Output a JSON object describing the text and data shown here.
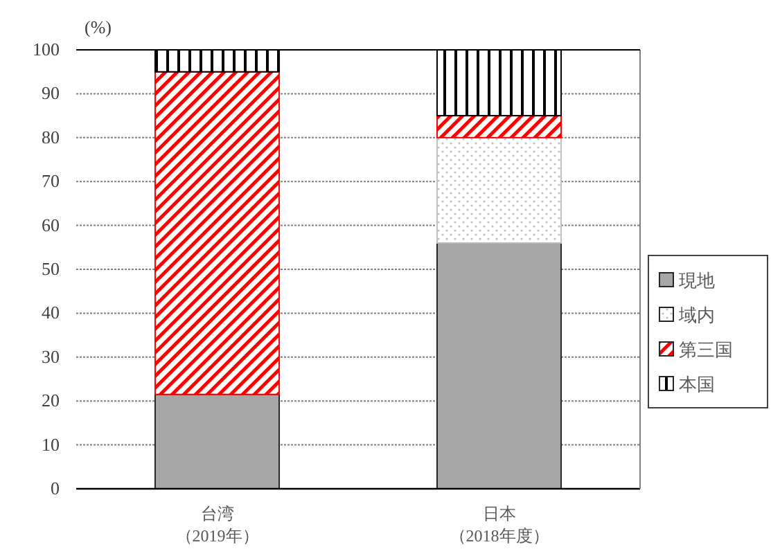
{
  "chart_data": {
    "type": "bar",
    "stacked": true,
    "ylabel": "(%)",
    "categories": [
      "台湾（2019年）",
      "日本（2018年度）"
    ],
    "series": [
      {
        "name": "現地",
        "color": "#a6a6a6",
        "values": [
          21.5,
          56
        ]
      },
      {
        "name": "域内",
        "color": "#bfbfbf",
        "values": [
          0,
          24
        ]
      },
      {
        "name": "第三国",
        "color": "#ff0000",
        "values": [
          73.5,
          5
        ]
      },
      {
        "name": "本国",
        "color": "#000000",
        "values": [
          5,
          15
        ]
      }
    ],
    "ylim": [
      0,
      100
    ],
    "yticks": [
      0,
      10,
      20,
      30,
      40,
      50,
      60,
      70,
      80,
      90,
      100
    ],
    "grid": "y",
    "legend": "right"
  }
}
